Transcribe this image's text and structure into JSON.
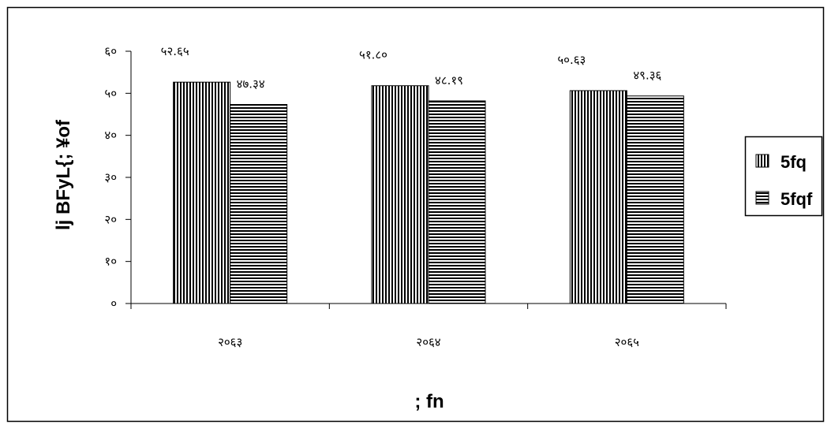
{
  "chart_data": {
    "type": "bar",
    "categories": [
      "२०६३",
      "२०६४",
      "२०६५"
    ],
    "series": [
      {
        "name": "5fq",
        "values": [
          52.65,
          51.8,
          50.63
        ],
        "labels": [
          "५२.६५",
          "५१.८०",
          "५०.६३"
        ],
        "pattern": "vertical-stripes"
      },
      {
        "name": "5fqf",
        "values": [
          47.34,
          48.19,
          49.36
        ],
        "labels": [
          "४७.३४",
          "४८.१९",
          "४९.३६"
        ],
        "pattern": "horizontal-stripes"
      }
    ],
    "yticks": [
      0,
      10,
      20,
      30,
      40,
      50,
      60
    ],
    "ytick_labels": [
      "०",
      "१०",
      "२०",
      "३०",
      "४०",
      "५०",
      "६०"
    ],
    "ylim": [
      0,
      60
    ],
    "xlabel": "; fn",
    "ylabel": "lj BFyL{; ¥of",
    "legend": "right",
    "grid": false,
    "colors": {
      "bar_fill": "#ffffff",
      "stripe": "#000000",
      "axis": "#000000"
    }
  }
}
